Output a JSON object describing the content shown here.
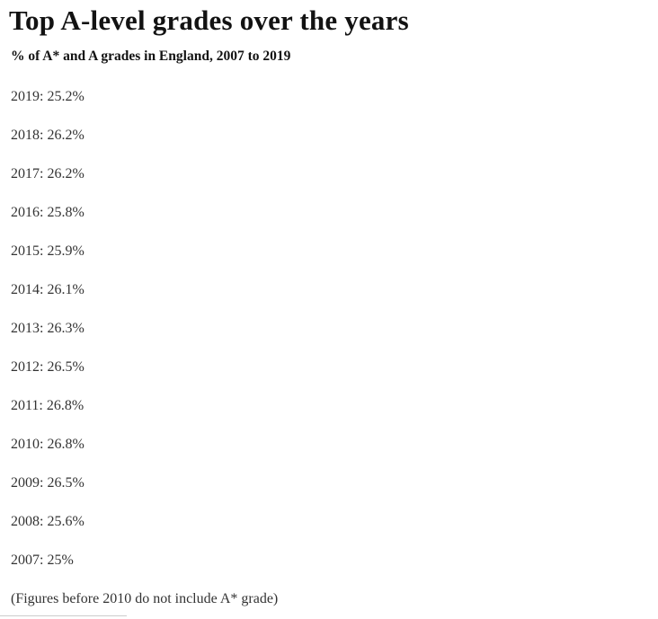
{
  "header": {
    "title": "Top A-level grades over the years",
    "subtitle": "% of A* and A grades in England, 2007 to 2019"
  },
  "items": [
    {
      "year": "2019",
      "value": "25.2%",
      "label": "2019: 25.2%"
    },
    {
      "year": "2018",
      "value": "26.2%",
      "label": "2018: 26.2%"
    },
    {
      "year": "2017",
      "value": "26.2%",
      "label": "2017: 26.2%"
    },
    {
      "year": "2016",
      "value": "25.8%",
      "label": "2016: 25.8%"
    },
    {
      "year": "2015",
      "value": "25.9%",
      "label": "2015: 25.9%"
    },
    {
      "year": "2014",
      "value": "26.1%",
      "label": "2014: 26.1%"
    },
    {
      "year": "2013",
      "value": "26.3%",
      "label": "2013: 26.3%"
    },
    {
      "year": "2012",
      "value": "26.5%",
      "label": "2012: 26.5%"
    },
    {
      "year": "2011",
      "value": "26.8%",
      "label": "2011: 26.8%"
    },
    {
      "year": "2010",
      "value": "26.8%",
      "label": "2010: 26.8%"
    },
    {
      "year": "2009",
      "value": "26.5%",
      "label": "2009: 26.5%"
    },
    {
      "year": "2008",
      "value": "25.6%",
      "label": "2008: 25.6%"
    },
    {
      "year": "2007",
      "value": "25%",
      "label": "2007: 25%"
    }
  ],
  "footnote": "(Figures before 2010 do not include A* grade)",
  "colors": {
    "title": "#121212",
    "body": "#333333",
    "divider": "#cccccc",
    "background": "#ffffff"
  },
  "chart_data": {
    "type": "table",
    "title": "Top A-level grades over the years",
    "subtitle": "% of A* and A grades in England, 2007 to 2019",
    "categories": [
      "2019",
      "2018",
      "2017",
      "2016",
      "2015",
      "2014",
      "2013",
      "2012",
      "2011",
      "2010",
      "2009",
      "2008",
      "2007"
    ],
    "values": [
      25.2,
      26.2,
      26.2,
      25.8,
      25.9,
      26.1,
      26.3,
      26.5,
      26.8,
      26.8,
      26.5,
      25.6,
      25
    ],
    "ylabel": "% of A* and A grades",
    "note": "(Figures before 2010 do not include A* grade)"
  }
}
